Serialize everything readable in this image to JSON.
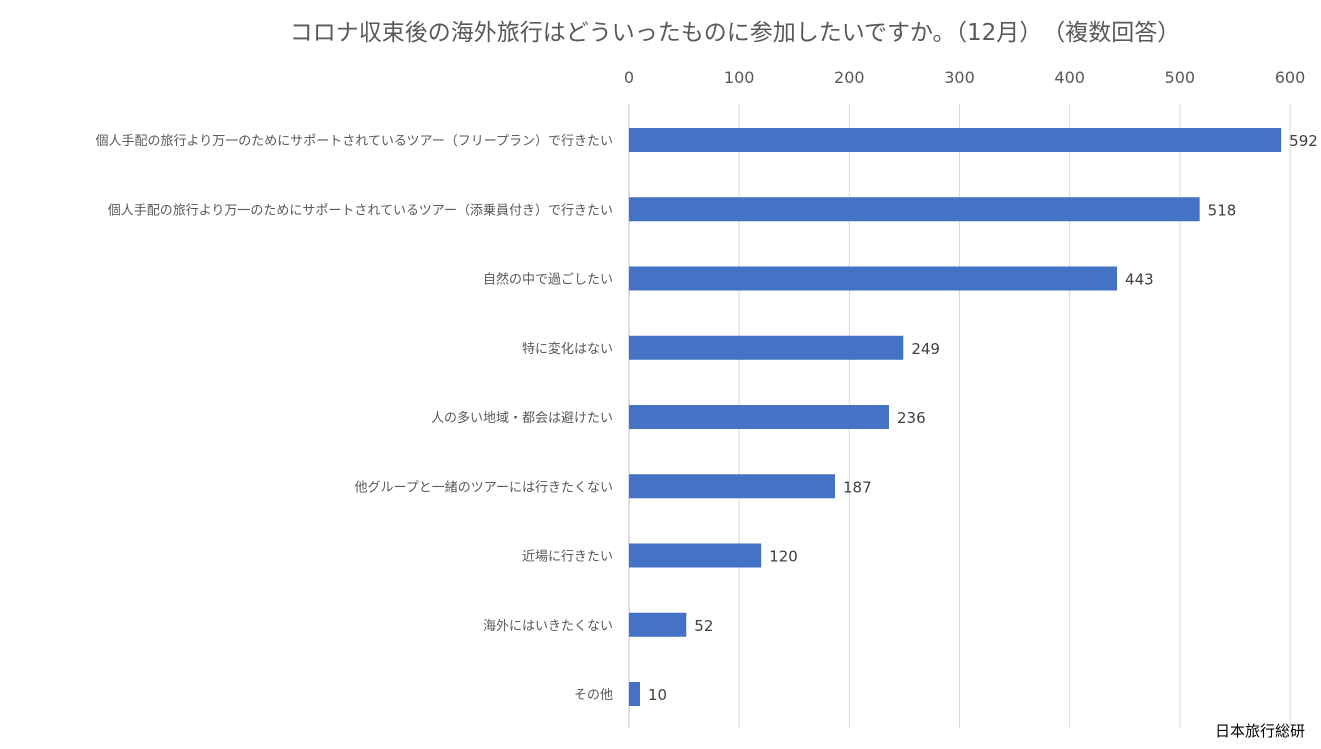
{
  "chart_data": {
    "type": "bar",
    "orientation": "horizontal",
    "title": "コロナ収束後の海外旅行はどういったものに参加したいですか。（12月）　（複数回答）",
    "categories": [
      "個人手配の旅行より万一のためにサポートされているツアー（フリープラン）で行きたい",
      "個人手配の旅行より万一のためにサポートされているツアー（添乗員付き）で行きたい",
      "自然の中で過ごしたい",
      "特に変化はない",
      "人の多い地域・都会は避けたい",
      "他グループと一緒のツアーには行きたくない",
      "近場に行きたい",
      "海外にはいきたくない",
      "その他"
    ],
    "values": [
      592,
      518,
      443,
      249,
      236,
      187,
      120,
      52,
      10
    ],
    "xlim": [
      0,
      600
    ],
    "xticks": [
      0,
      100,
      200,
      300,
      400,
      500,
      600
    ],
    "xlabel": "",
    "ylabel": "",
    "axis_position": "top",
    "grid": true,
    "data_labels": true,
    "bar_color": "#4472C4",
    "source": "日本旅行総研"
  }
}
